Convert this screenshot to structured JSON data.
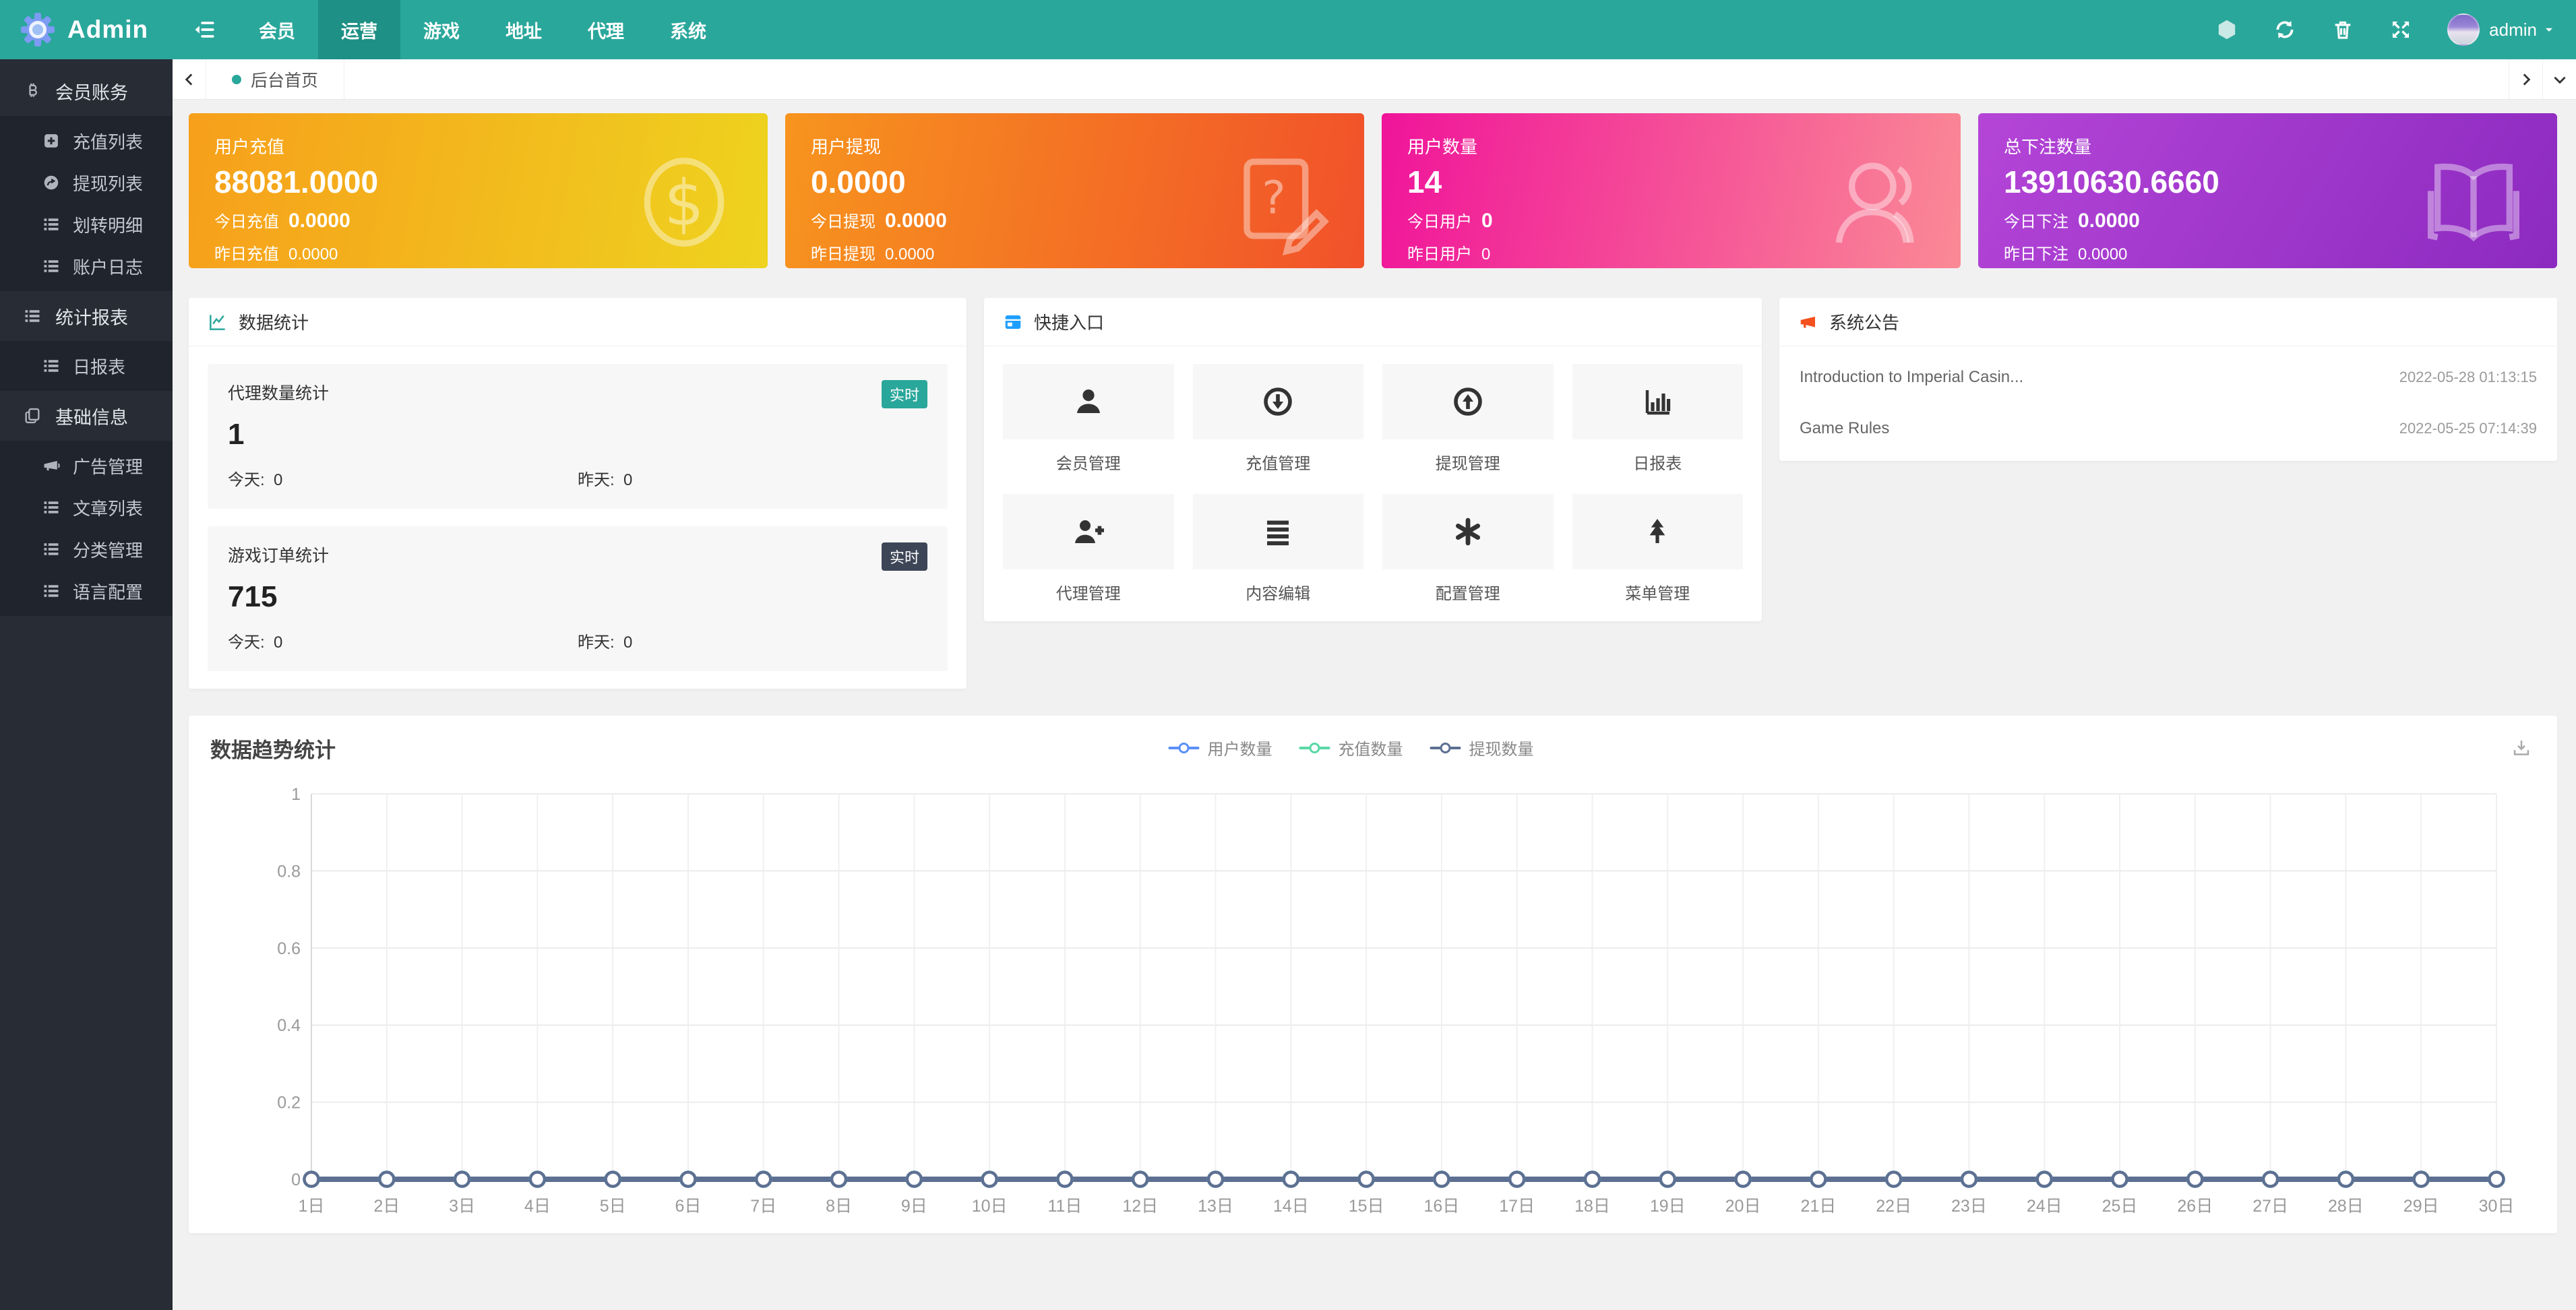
{
  "navbar": {
    "brand": "Admin",
    "menu": [
      "会员",
      "运营",
      "游戏",
      "地址",
      "代理",
      "系统"
    ],
    "active_index": 1,
    "icons": [
      "hexagon-icon",
      "refresh-icon",
      "trash-icon",
      "expand-icon"
    ],
    "user": "admin"
  },
  "sidebar": {
    "groups": [
      {
        "label": "会员账务",
        "icon": "bitcoin",
        "items": [
          {
            "label": "充值列表",
            "icon": "plus-square"
          },
          {
            "label": "提现列表",
            "icon": "share-circle"
          },
          {
            "label": "划转明细",
            "icon": "list"
          },
          {
            "label": "账户日志",
            "icon": "list"
          }
        ]
      },
      {
        "label": "统计报表",
        "icon": "list",
        "items": [
          {
            "label": "日报表",
            "icon": "list"
          }
        ]
      },
      {
        "label": "基础信息",
        "icon": "copy",
        "items": [
          {
            "label": "广告管理",
            "icon": "ad"
          },
          {
            "label": "文章列表",
            "icon": "list"
          },
          {
            "label": "分类管理",
            "icon": "list"
          },
          {
            "label": "语言配置",
            "icon": "list"
          }
        ]
      }
    ]
  },
  "tabbar": {
    "active_tab": "后台首页"
  },
  "stat_cards": [
    {
      "title": "用户充值",
      "value": "88081.0000",
      "line1_label": "今日充值",
      "line1_value": "0.0000",
      "line2_label": "昨日充值",
      "line2_value": "0.0000",
      "icon": "dollar-coin",
      "gradient": [
        "#f79f1b",
        "#eed31f"
      ],
      "angle": "100deg"
    },
    {
      "title": "用户提现",
      "value": "0.0000",
      "line1_label": "今日提现",
      "line1_value": "0.0000",
      "line2_label": "昨日提现",
      "line2_value": "0.0000",
      "icon": "doc-question",
      "gradient": [
        "#f7941e",
        "#f1512a"
      ],
      "angle": "100deg"
    },
    {
      "title": "用户数量",
      "value": "14",
      "line1_label": "今日用户",
      "line1_value": "0",
      "line2_label": "昨日用户",
      "line2_value": "0",
      "icon": "users",
      "gradient": [
        "#f0149a",
        "#fa8a95"
      ],
      "angle": "100deg"
    },
    {
      "title": "总下注数量",
      "value": "13910630.6660",
      "line1_label": "今日下注",
      "line1_value": "0.0000",
      "line2_label": "昨日下注",
      "line2_value": "0.0000",
      "icon": "open-book",
      "gradient": [
        "#b445d7",
        "#8c2ac0"
      ],
      "angle": "120deg"
    }
  ],
  "data_stats": {
    "title": "数据统计",
    "cards": [
      {
        "title": "代理数量统计",
        "badge": "实时",
        "badge_color": "#2aa79b",
        "value": "1",
        "today_label": "今天:",
        "today_value": "0",
        "yesterday_label": "昨天:",
        "yesterday_value": "0"
      },
      {
        "title": "游戏订单统计",
        "badge": "实时",
        "badge_color": "#3d4657",
        "value": "715",
        "today_label": "今天:",
        "today_value": "0",
        "yesterday_label": "昨天:",
        "yesterday_value": "0"
      }
    ]
  },
  "quick_entry": {
    "title": "快捷入口",
    "items": [
      {
        "label": "会员管理",
        "icon": "user"
      },
      {
        "label": "充值管理",
        "icon": "circle-down"
      },
      {
        "label": "提现管理",
        "icon": "circle-up"
      },
      {
        "label": "日报表",
        "icon": "bar-chart"
      },
      {
        "label": "代理管理",
        "icon": "user-plus"
      },
      {
        "label": "内容编辑",
        "icon": "align-justify"
      },
      {
        "label": "配置管理",
        "icon": "asterisk"
      },
      {
        "label": "菜单管理",
        "icon": "tree"
      }
    ]
  },
  "announcements": {
    "title": "系统公告",
    "items": [
      {
        "text": "Introduction to Imperial Casin...",
        "time": "2022-05-28 01:13:15"
      },
      {
        "text": "Game Rules",
        "time": "2022-05-25 07:14:39"
      }
    ]
  },
  "chart_data": {
    "type": "line",
    "title": "数据趋势统计",
    "categories": [
      "1日",
      "2日",
      "3日",
      "4日",
      "5日",
      "6日",
      "7日",
      "8日",
      "9日",
      "10日",
      "11日",
      "12日",
      "13日",
      "14日",
      "15日",
      "16日",
      "17日",
      "18日",
      "19日",
      "20日",
      "21日",
      "22日",
      "23日",
      "24日",
      "25日",
      "26日",
      "27日",
      "28日",
      "29日",
      "30日"
    ],
    "series": [
      {
        "name": "用户数量",
        "color": "#5B8FF9",
        "values": [
          0,
          0,
          0,
          0,
          0,
          0,
          0,
          0,
          0,
          0,
          0,
          0,
          0,
          0,
          0,
          0,
          0,
          0,
          0,
          0,
          0,
          0,
          0,
          0,
          0,
          0,
          0,
          0,
          0,
          0
        ]
      },
      {
        "name": "充值数量",
        "color": "#5AD8A6",
        "values": [
          0,
          0,
          0,
          0,
          0,
          0,
          0,
          0,
          0,
          0,
          0,
          0,
          0,
          0,
          0,
          0,
          0,
          0,
          0,
          0,
          0,
          0,
          0,
          0,
          0,
          0,
          0,
          0,
          0,
          0
        ]
      },
      {
        "name": "提现数量",
        "color": "#5D7092",
        "values": [
          0,
          0,
          0,
          0,
          0,
          0,
          0,
          0,
          0,
          0,
          0,
          0,
          0,
          0,
          0,
          0,
          0,
          0,
          0,
          0,
          0,
          0,
          0,
          0,
          0,
          0,
          0,
          0,
          0,
          0
        ]
      }
    ],
    "ylim": [
      0,
      1
    ],
    "yticks": [
      "0",
      "0.2",
      "0.4",
      "0.6",
      "0.8",
      "1"
    ],
    "grid": true,
    "legend_position": "top-center"
  },
  "colors": {
    "primary": "#2aa79b",
    "navbar_active": "#1e9085",
    "sidebar_bg": "#272c35",
    "sidebar_sub_bg": "#20252d",
    "announce_icon": "#f4511e",
    "quick_icon_header": "#1e9fff"
  }
}
